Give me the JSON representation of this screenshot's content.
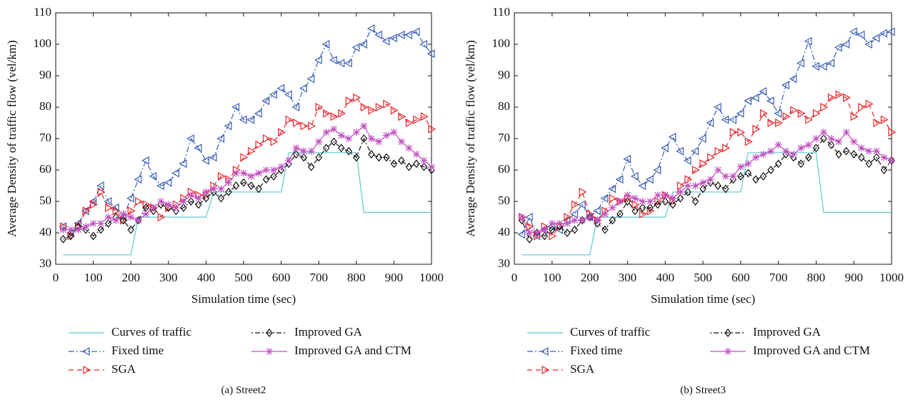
{
  "chart_data": [
    {
      "type": "line",
      "caption": "(a)  Street2",
      "xlabel": "Simulation time (sec)",
      "ylabel": "Average Density of traffic flow (vel/km)",
      "xlim": [
        0,
        1000
      ],
      "ylim": [
        30,
        110
      ],
      "xticks": [
        0,
        100,
        200,
        300,
        400,
        500,
        600,
        700,
        800,
        900,
        1000
      ],
      "yticks": [
        30,
        40,
        50,
        60,
        70,
        80,
        90,
        100,
        110
      ],
      "x": [
        20,
        40,
        60,
        80,
        100,
        120,
        140,
        160,
        180,
        200,
        220,
        240,
        260,
        280,
        300,
        320,
        340,
        360,
        380,
        400,
        420,
        440,
        460,
        480,
        500,
        520,
        540,
        560,
        580,
        600,
        620,
        640,
        660,
        680,
        700,
        720,
        740,
        760,
        780,
        800,
        820,
        840,
        860,
        880,
        900,
        920,
        940,
        960,
        980,
        1000
      ],
      "series": [
        {
          "name": "Curves of traffic",
          "color": "#5bc8d4",
          "marker": "none",
          "dash": "none",
          "x": [
            20,
            200,
            220,
            400,
            420,
            600,
            620,
            800,
            820,
            1000
          ],
          "values": [
            33,
            33,
            45,
            45,
            53,
            53,
            65.5,
            65.5,
            46.5,
            46.5
          ]
        },
        {
          "name": "Fixed time",
          "color": "#3a5fb5",
          "marker": "triangle-left",
          "dash": "8 3 2 3",
          "values": [
            42,
            40,
            43,
            47,
            50,
            55,
            50,
            48,
            45,
            51,
            57,
            63,
            58,
            55,
            56,
            59,
            62,
            70,
            67,
            63,
            64,
            70,
            74,
            80,
            76,
            76,
            78,
            82,
            84,
            86,
            84,
            80,
            86,
            89,
            95,
            100,
            95,
            94,
            94,
            99,
            100,
            105,
            103,
            101,
            102,
            103,
            103,
            104,
            100,
            97
          ]
        },
        {
          "name": "SGA",
          "color": "#e8232a",
          "marker": "triangle-right",
          "dash": "7 5",
          "values": [
            42,
            39,
            42,
            47,
            49,
            53,
            48,
            47,
            44,
            47,
            50,
            49,
            48,
            45,
            48,
            49,
            51,
            53,
            52,
            52,
            55,
            58,
            57,
            60,
            64,
            66,
            68,
            70,
            69,
            72,
            76,
            75,
            74,
            74,
            80,
            78,
            77,
            78,
            82,
            83,
            80,
            79,
            80,
            81,
            79,
            77,
            75,
            76,
            77,
            73
          ]
        },
        {
          "name": "Improved GA",
          "color": "#111111",
          "marker": "diamond",
          "dash": "2 3 7 3",
          "values": [
            38,
            39,
            42,
            41,
            39,
            41,
            43,
            45,
            44,
            41,
            44,
            48,
            47,
            49,
            48,
            47,
            48,
            50,
            49,
            51,
            53,
            51,
            53,
            55,
            56,
            55,
            54,
            57,
            58,
            60,
            62,
            65,
            64,
            61,
            64,
            67,
            69,
            67,
            66,
            64,
            70,
            65,
            64,
            64,
            62,
            63,
            61,
            62,
            61,
            60
          ]
        },
        {
          "name": "Improved GA and CTM",
          "color": "#c050c0",
          "marker": "asterisk",
          "dash": "none",
          "values": [
            41,
            41,
            41,
            42,
            43,
            43,
            45,
            44,
            46,
            45,
            44,
            46,
            48,
            50,
            49,
            48,
            50,
            52,
            51,
            53,
            54,
            54,
            56,
            59,
            59,
            58,
            59,
            60,
            60,
            61,
            63,
            67,
            66,
            66,
            69,
            72,
            73,
            71,
            70,
            72,
            74,
            70,
            69,
            71,
            72,
            69,
            67,
            65,
            63,
            61
          ]
        }
      ]
    },
    {
      "type": "line",
      "caption": "(b)  Street3",
      "xlabel": "Simulation time (sec)",
      "ylabel": "Average Density of traffic flow (vel/km)",
      "xlim": [
        0,
        1000
      ],
      "ylim": [
        30,
        110
      ],
      "xticks": [
        0,
        100,
        200,
        300,
        400,
        500,
        600,
        700,
        800,
        900,
        1000
      ],
      "yticks": [
        30,
        40,
        50,
        60,
        70,
        80,
        90,
        100,
        110
      ],
      "x": [
        20,
        40,
        60,
        80,
        100,
        120,
        140,
        160,
        180,
        200,
        220,
        240,
        260,
        280,
        300,
        320,
        340,
        360,
        380,
        400,
        420,
        440,
        460,
        480,
        500,
        520,
        540,
        560,
        580,
        600,
        620,
        640,
        660,
        680,
        700,
        720,
        740,
        760,
        780,
        800,
        820,
        840,
        860,
        880,
        900,
        920,
        940,
        960,
        980,
        1000
      ],
      "series": [
        {
          "name": "Curves of traffic",
          "color": "#5bc8d4",
          "marker": "none",
          "dash": "none",
          "x": [
            20,
            200,
            220,
            400,
            420,
            600,
            620,
            800,
            820,
            1000
          ],
          "values": [
            33,
            33,
            45,
            45,
            53,
            53,
            65.5,
            65.5,
            46.5,
            46.5
          ]
        },
        {
          "name": "Fixed time",
          "color": "#3a5fb5",
          "marker": "triangle-left",
          "dash": "8 3 2 3",
          "values": [
            39.5,
            45,
            39,
            41,
            42,
            41,
            44,
            46,
            49,
            45,
            47,
            51,
            54,
            57,
            63.5,
            58,
            55,
            57,
            60,
            67,
            70.5,
            66,
            63,
            66,
            70,
            75,
            80,
            76,
            76,
            78,
            82,
            83,
            85,
            82,
            78,
            87,
            89,
            94,
            101,
            93,
            93,
            94,
            99,
            100,
            104,
            103,
            100,
            102,
            103.5,
            104
          ]
        },
        {
          "name": "SGA",
          "color": "#e8232a",
          "marker": "triangle-right",
          "dash": "7 5",
          "values": [
            45,
            42,
            39,
            42,
            39,
            42,
            45,
            49,
            53,
            46,
            44,
            47,
            51,
            50,
            51,
            49,
            46,
            47,
            50,
            52,
            50,
            55,
            57,
            60,
            62,
            64,
            66,
            67,
            72,
            72,
            69,
            73,
            78,
            75,
            75,
            77,
            79,
            78,
            76,
            78,
            80,
            83,
            84,
            83,
            77,
            80,
            81,
            75,
            76,
            72
          ]
        },
        {
          "name": "Improved GA",
          "color": "#111111",
          "marker": "diamond",
          "dash": "2 3 7 3",
          "values": [
            44,
            38,
            40,
            39,
            41,
            42,
            40,
            41,
            44,
            45,
            43,
            41,
            44,
            46,
            50,
            47,
            48,
            48,
            49,
            50,
            49,
            51,
            53,
            50,
            54,
            56,
            55,
            54,
            57,
            58,
            59,
            57,
            58,
            60,
            62,
            65,
            64,
            62,
            64,
            67,
            70,
            68,
            65,
            66,
            65,
            64,
            62,
            64,
            60,
            63
          ]
        },
        {
          "name": "Improved GA and CTM",
          "color": "#c050c0",
          "marker": "asterisk",
          "dash": "none",
          "values": [
            45,
            40,
            40,
            41,
            43,
            43,
            43,
            44,
            44,
            45,
            44,
            46,
            48,
            50,
            52,
            51,
            50,
            50,
            52,
            52,
            51,
            53,
            55,
            55,
            56,
            57,
            60,
            58,
            58,
            61,
            62,
            64,
            65,
            66,
            68,
            66,
            65,
            67,
            68,
            70,
            72,
            70,
            69,
            72,
            69,
            67,
            66,
            66,
            64,
            63
          ]
        }
      ]
    }
  ]
}
